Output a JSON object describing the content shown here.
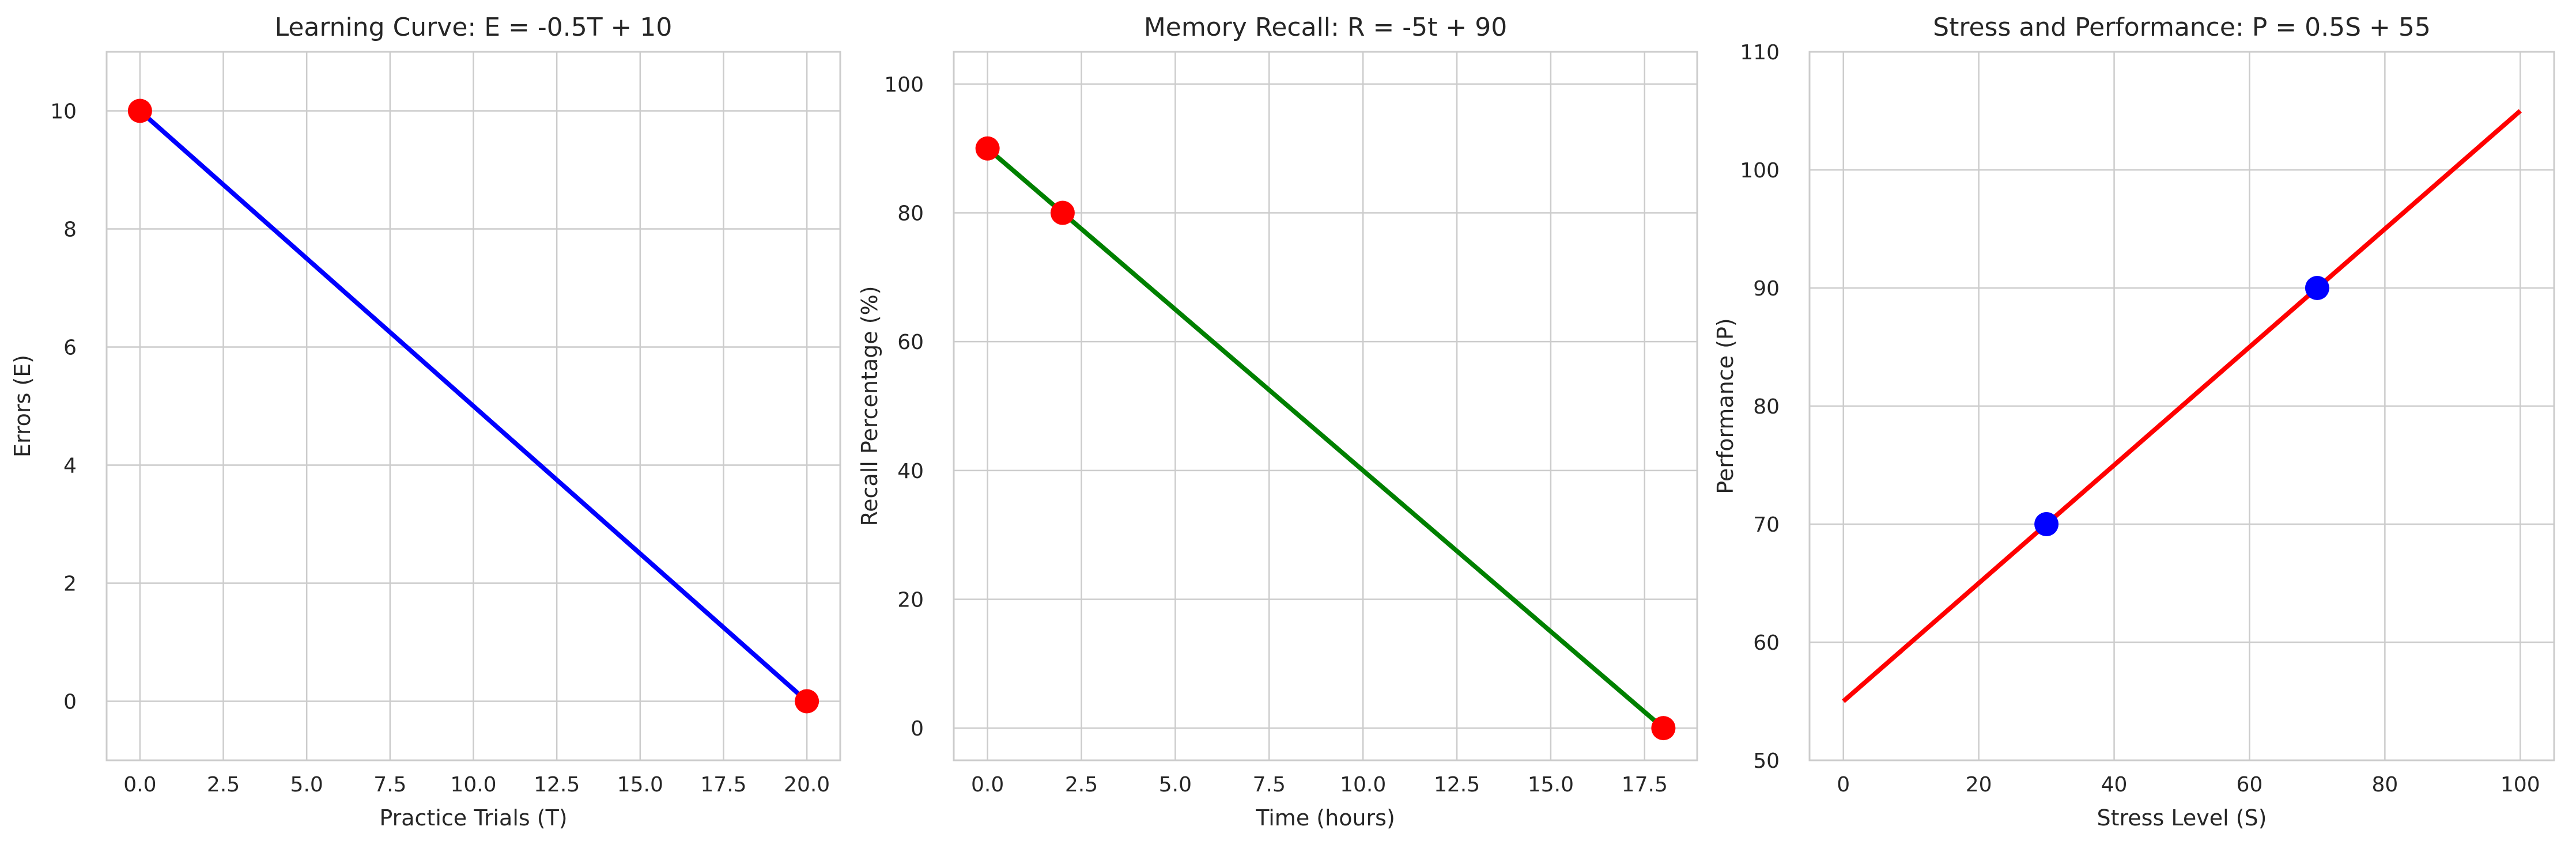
{
  "chart_data": [
    {
      "type": "line",
      "title": "Learning Curve: E = -0.5T + 10",
      "xlabel": "Practice Trials (T)",
      "ylabel": "Errors (E)",
      "xlim": [
        -1,
        21
      ],
      "ylim": [
        -1,
        11
      ],
      "xticks": [
        0,
        2.5,
        5,
        7.5,
        10,
        12.5,
        15,
        17.5,
        20
      ],
      "xtick_labels": [
        "0.0",
        "2.5",
        "5.0",
        "7.5",
        "10.0",
        "12.5",
        "15.0",
        "17.5",
        "20.0"
      ],
      "yticks": [
        0,
        2,
        4,
        6,
        8,
        10
      ],
      "ytick_labels": [
        "0",
        "2",
        "4",
        "6",
        "8",
        "10"
      ],
      "grid": true,
      "line": {
        "x": [
          0,
          20
        ],
        "y": [
          10,
          0
        ],
        "color": "#0000ff"
      },
      "points": {
        "x": [
          0,
          20
        ],
        "y": [
          10,
          0
        ],
        "color": "#ff0000"
      }
    },
    {
      "type": "line",
      "title": "Memory Recall: R = -5t + 90",
      "xlabel": "Time (hours)",
      "ylabel": "Recall Percentage (%)",
      "xlim": [
        -0.9,
        18.9
      ],
      "ylim": [
        -5,
        105
      ],
      "xticks": [
        0,
        2.5,
        5,
        7.5,
        10,
        12.5,
        15,
        17.5
      ],
      "xtick_labels": [
        "0.0",
        "2.5",
        "5.0",
        "7.5",
        "10.0",
        "12.5",
        "15.0",
        "17.5"
      ],
      "yticks": [
        0,
        20,
        40,
        60,
        80,
        100
      ],
      "ytick_labels": [
        "0",
        "20",
        "40",
        "60",
        "80",
        "100"
      ],
      "grid": true,
      "line": {
        "x": [
          0,
          18
        ],
        "y": [
          90,
          0
        ],
        "color": "#008000"
      },
      "points": {
        "x": [
          0,
          2,
          18
        ],
        "y": [
          90,
          80,
          0
        ],
        "color": "#ff0000"
      }
    },
    {
      "type": "line",
      "title": "Stress and Performance: P = 0.5S + 55",
      "xlabel": "Stress Level (S)",
      "ylabel": "Performance (P)",
      "xlim": [
        -5,
        105
      ],
      "ylim": [
        50,
        110
      ],
      "xticks": [
        0,
        20,
        40,
        60,
        80,
        100
      ],
      "xtick_labels": [
        "0",
        "20",
        "40",
        "60",
        "80",
        "100"
      ],
      "yticks": [
        50,
        60,
        70,
        80,
        90,
        100,
        110
      ],
      "ytick_labels": [
        "50",
        "60",
        "70",
        "80",
        "90",
        "100",
        "110"
      ],
      "grid": true,
      "line": {
        "x": [
          0,
          100
        ],
        "y": [
          55,
          105
        ],
        "color": "#ff0000"
      },
      "points": {
        "x": [
          30,
          70
        ],
        "y": [
          70,
          90
        ],
        "color": "#0000ff"
      }
    }
  ]
}
